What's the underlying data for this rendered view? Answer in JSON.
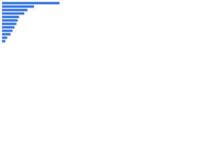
{
  "chart_data": {
    "type": "bar",
    "orientation": "horizontal",
    "categories": [
      null,
      null,
      null,
      null,
      null,
      null,
      null,
      null,
      null,
      null,
      null,
      null
    ],
    "values": [
      88,
      49,
      39,
      34,
      26,
      24,
      22,
      19,
      16,
      13,
      8,
      5
    ],
    "color": "#3a78e6",
    "xlim": [
      0,
      100
    ]
  }
}
